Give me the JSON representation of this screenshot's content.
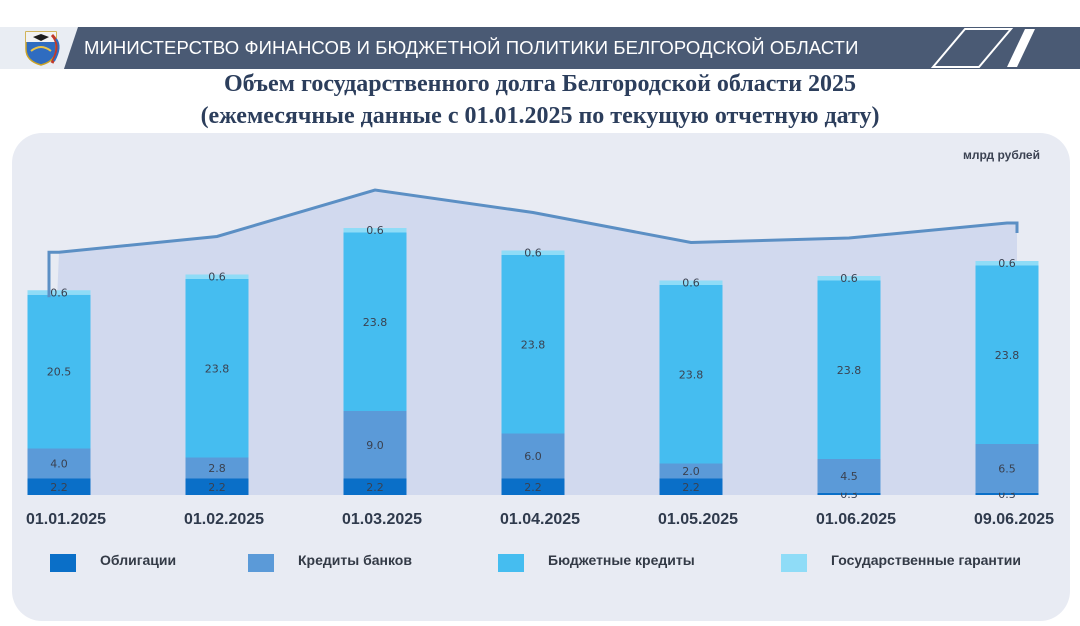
{
  "header": {
    "title": "МИНИСТЕРСТВО ФИНАНСОВ И БЮДЖЕТНОЙ ПОЛИТИКИ БЕЛГОРОДСКОЙ ОБЛАСТИ"
  },
  "colors": {
    "header_bg": "#4a5a74",
    "panel_bg": "#e8ebf3",
    "bonds": "#0a6fc8",
    "bank_loans": "#5b9ad8",
    "budget_loans": "#45bdf0",
    "guarantees": "#8fdcf7",
    "total_line": "#5b8fc4"
  },
  "chart_data": {
    "type": "bar",
    "stacked": true,
    "title": "Объем государственного долга Белгородской области 2025",
    "subtitle": "(ежемесячные данные с 01.01.2025 по текущую отчетную дату)",
    "unit": "млрд рублей",
    "categories": [
      "01.01.2025",
      "01.02.2025",
      "01.03.2025",
      "01.04.2025",
      "01.05.2025",
      "01.06.2025",
      "09.06.2025"
    ],
    "series": [
      {
        "name": "Облигации",
        "color": "#0a6fc8",
        "values": [
          2.2,
          2.2,
          2.2,
          2.2,
          2.2,
          0.3,
          0.3
        ],
        "labels": [
          "2.2",
          "2.2",
          "2.2",
          "2.2",
          "2.2",
          "0.3",
          "0.3"
        ]
      },
      {
        "name": "Кредиты банков",
        "color": "#5b9ad8",
        "values": [
          4.0,
          2.8,
          9.0,
          6.0,
          2.0,
          4.5,
          6.5
        ],
        "labels": [
          "4.0",
          "2.8",
          "9.0",
          "6.0",
          "2.0",
          "4.5",
          "6.5"
        ]
      },
      {
        "name": "Бюджетные кредиты",
        "color": "#45bdf0",
        "values": [
          20.5,
          23.8,
          23.8,
          23.8,
          23.8,
          23.8,
          23.8
        ],
        "labels": [
          "20.5",
          "23.8",
          "23.8",
          "23.8",
          "23.8",
          "23.8",
          "23.8"
        ]
      },
      {
        "name": "Государственные гарантии",
        "color": "#8fdcf7",
        "values": [
          0.6,
          0.6,
          0.6,
          0.6,
          0.6,
          0.6,
          0.6
        ],
        "labels": [
          "0.6",
          "0.6",
          "0.6",
          "0.6",
          "0.6",
          "0.6",
          "0.6"
        ]
      }
    ],
    "total_line": {
      "shown": true,
      "color": "#5b8fc4"
    },
    "ylim": [
      0,
      36
    ],
    "grid": false,
    "legend": "bottom"
  }
}
